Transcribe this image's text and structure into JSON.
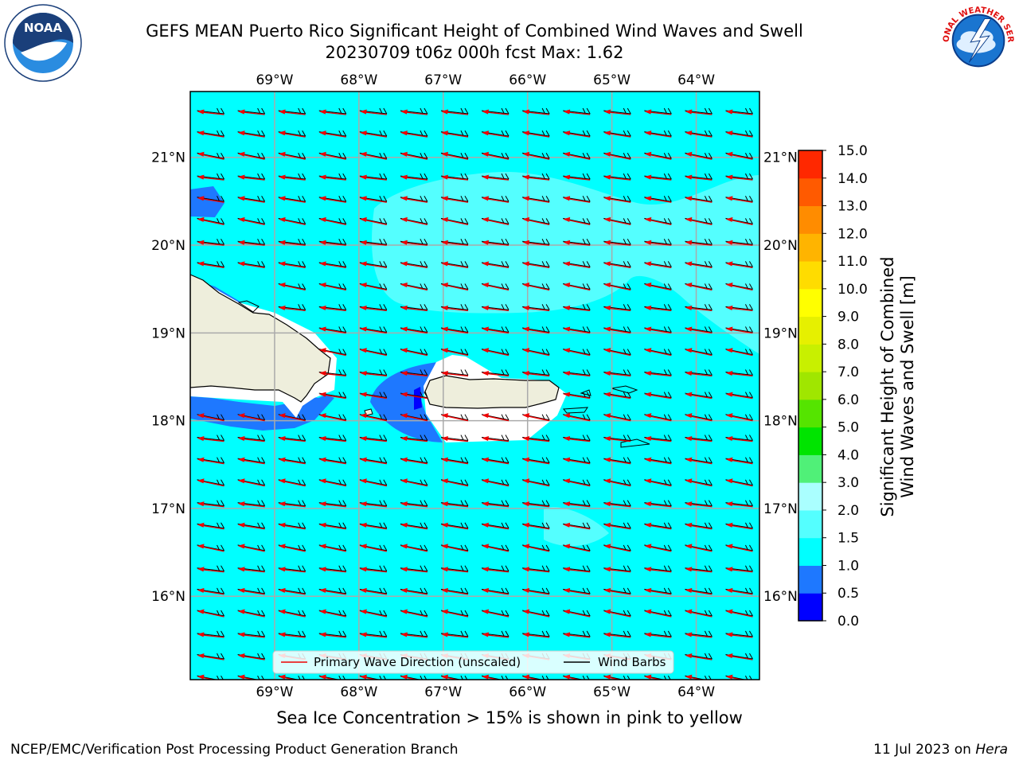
{
  "header": {
    "title": "GEFS MEAN Puerto Rico Significant Height of Combined Wind Waves and Swell",
    "subtitle": "20230709 t06z 000h fcst   Max: 1.62"
  },
  "logos": {
    "left": {
      "icon": "noaa-logo",
      "text": "NOAA"
    },
    "right": {
      "icon": "nws-logo",
      "text": "NATIONAL WEATHER SERVICE"
    }
  },
  "map": {
    "lon_labels": [
      "69°W",
      "68°W",
      "67°W",
      "66°W",
      "65°W",
      "64°W"
    ],
    "lon_values": [
      -69,
      -68,
      -67,
      -66,
      -65,
      -64
    ],
    "lat_labels": [
      "21°N",
      "20°N",
      "19°N",
      "18°N",
      "17°N",
      "16°N"
    ],
    "lat_values": [
      21,
      20,
      19,
      18,
      17,
      16
    ],
    "lon_range": [
      -70,
      -63.25
    ],
    "lat_range": [
      15.05,
      21.75
    ],
    "max_value": 1.62,
    "colors": {
      "ocean": "#00ffff",
      "light_wave": "#54ffff",
      "land": "#eeeedc",
      "deep_blue": "#1e78ff",
      "arrow": "#ee0000",
      "barb": "#000000"
    }
  },
  "legend": {
    "wave_label": "Primary Wave Direction (unscaled)",
    "barb_label": "Wind Barbs"
  },
  "colorbar": {
    "label_line1": "Significant Height of Combined",
    "label_line2": "Wind Waves and Swell [m]",
    "ticks": [
      "15.0",
      "14.0",
      "13.0",
      "12.0",
      "11.0",
      "10.0",
      "9.0",
      "8.0",
      "7.0",
      "6.0",
      "5.0",
      "4.0",
      "3.0",
      "2.0",
      "1.5",
      "1.0",
      "0.5",
      "0.0"
    ],
    "colors_bottom_up": [
      "#0000ff",
      "#1e78ff",
      "#00ffff",
      "#54ffff",
      "#aaffff",
      "#50f078",
      "#00e400",
      "#55e400",
      "#a0e600",
      "#c8f000",
      "#e6f000",
      "#ffff00",
      "#ffdc00",
      "#ffb400",
      "#ff8c00",
      "#ff5a00",
      "#ff2800"
    ]
  },
  "footer": {
    "note": "Sea Ice Concentration > 15% is shown in pink to yellow",
    "credit_left": "NCEP/EMC/Verification Post Processing Product Generation Branch",
    "credit_date": "11 Jul 2023 on",
    "credit_host": "Hera"
  }
}
